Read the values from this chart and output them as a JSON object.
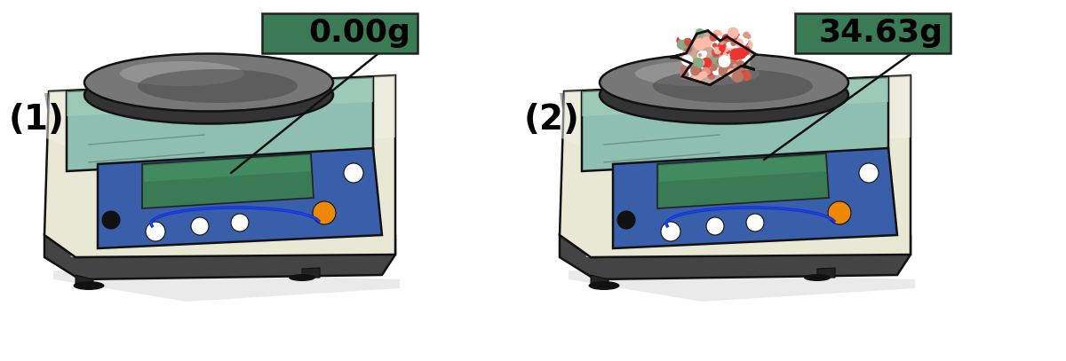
{
  "bg_color": "#ffffff",
  "body_cream": "#e8e8d5",
  "body_cream_light": "#f2f2e8",
  "body_dark_side": "#555550",
  "base_gray": "#444444",
  "tray_green": "#8fbfb0",
  "tray_green_light": "#a8d0c0",
  "panel_blue": "#3a5faa",
  "panel_blue_dark": "#2a4f9a",
  "lcd_green": "#3a7a55",
  "btn_white": "#ffffff",
  "btn_orange": "#ee8800",
  "btn_black": "#111111",
  "plate_mid": "#777777",
  "plate_dark": "#333333",
  "plate_light": "#aaaaaa",
  "outline": "#111111",
  "callout_bg": "#3a7a55",
  "callout_text": "#000000",
  "arrow_color": "#111111",
  "shadow_color": "#cccccc",
  "label_1": "(1)",
  "label_2": "(2)",
  "text_1": "0.00g",
  "text_2": "34.63g",
  "rock_base": "#c8a898",
  "rock_colors": [
    "#cc5544",
    "#dd9988",
    "#ffffff",
    "#88aa88",
    "#bb7766",
    "#ee3333",
    "#ffbbaa"
  ],
  "lw": 1.8
}
